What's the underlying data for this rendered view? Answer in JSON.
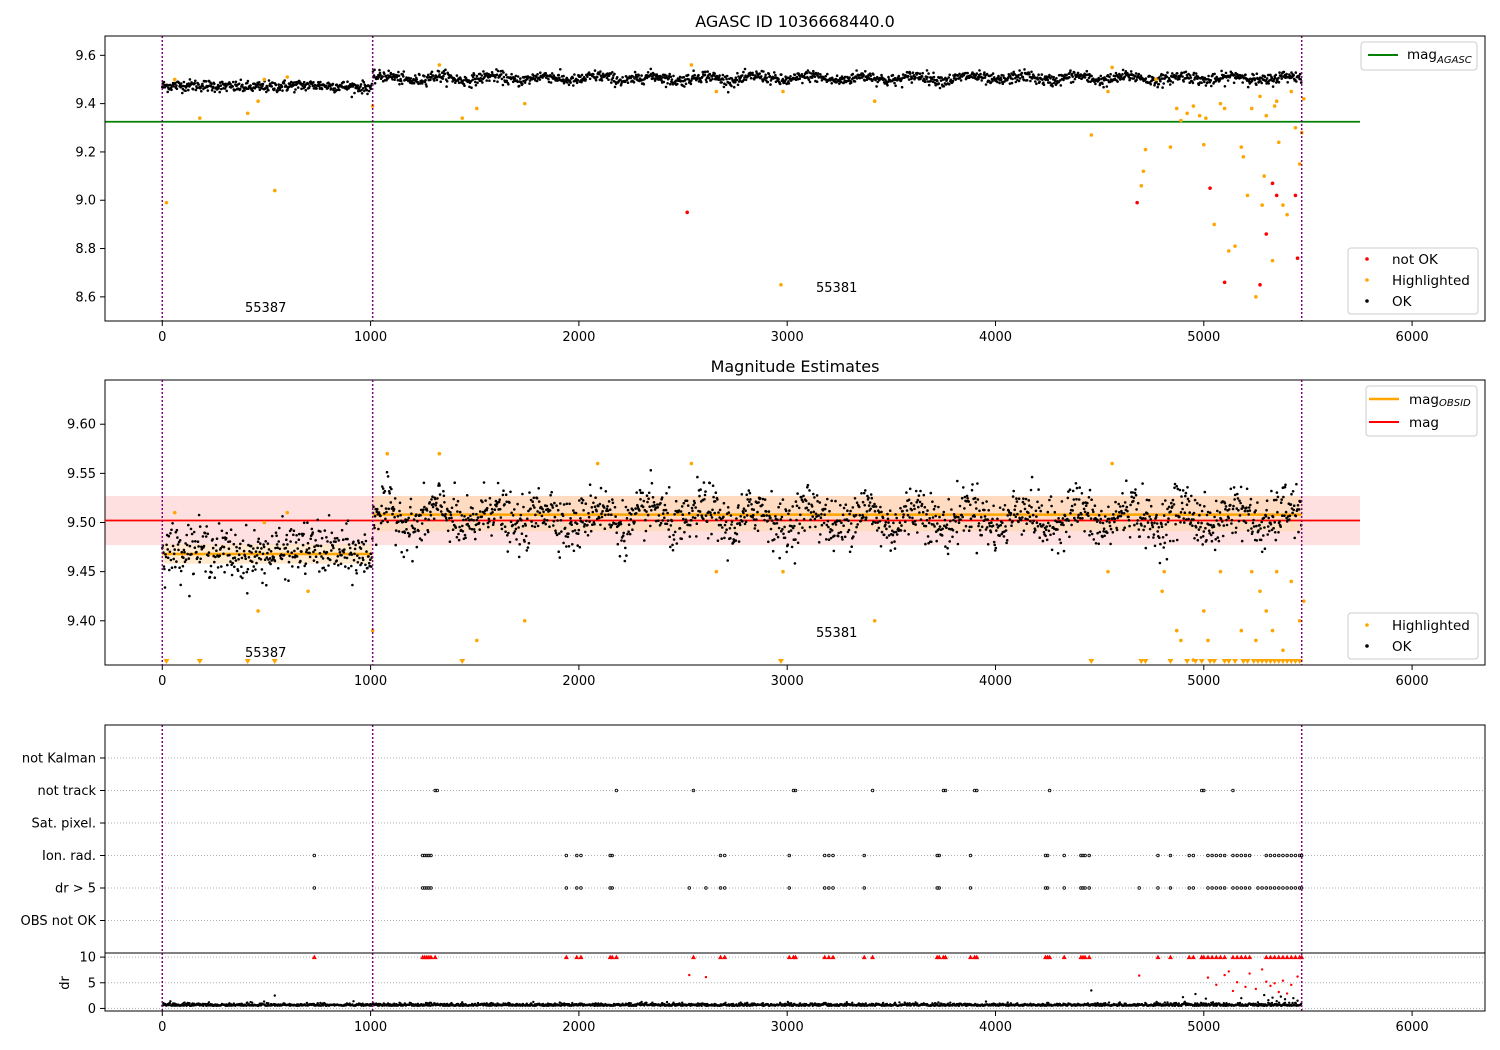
{
  "chart_data": [
    {
      "type": "scatter",
      "title": "AGASC ID 1036668440.0",
      "xlim": [
        -275,
        6350
      ],
      "ylim": [
        8.5,
        9.68
      ],
      "xticks": [
        0,
        1000,
        2000,
        3000,
        4000,
        5000,
        6000
      ],
      "yticks": [
        8.6,
        8.8,
        9.0,
        9.2,
        9.4,
        9.6
      ],
      "ytick_labels": [
        "8.6",
        "8.8",
        "9.0",
        "9.2",
        "9.4",
        "9.6"
      ],
      "obsid_boundaries": [
        0,
        1010,
        5470
      ],
      "mag_agasc": 9.325,
      "mag_agasc_xrange": [
        -275,
        5750
      ],
      "ok_band": {
        "x_start": 0,
        "x_split": 1010,
        "x_end": 5470,
        "level_before": 9.472,
        "level_after": 9.505,
        "scatter": 0.012,
        "wave_amp": 0.02,
        "wave_period": 255
      },
      "highlighted": [
        [
          20,
          8.99
        ],
        [
          60,
          9.5
        ],
        [
          180,
          9.34
        ],
        [
          410,
          9.36
        ],
        [
          460,
          9.41
        ],
        [
          490,
          9.5
        ],
        [
          540,
          9.04
        ],
        [
          600,
          9.51
        ],
        [
          1010,
          9.39
        ],
        [
          1440,
          9.34
        ],
        [
          1510,
          9.38
        ],
        [
          1740,
          9.4
        ],
        [
          1330,
          9.56
        ],
        [
          2540,
          9.56
        ],
        [
          2660,
          9.45
        ],
        [
          2970,
          8.65
        ],
        [
          2980,
          9.45
        ],
        [
          3420,
          9.41
        ],
        [
          4460,
          9.27
        ],
        [
          4540,
          9.45
        ],
        [
          4560,
          9.55
        ],
        [
          4700,
          9.06
        ],
        [
          4710,
          9.12
        ],
        [
          4720,
          9.21
        ],
        [
          4770,
          9.5
        ],
        [
          4840,
          9.22
        ],
        [
          4870,
          9.38
        ],
        [
          4890,
          9.33
        ],
        [
          4920,
          9.36
        ],
        [
          4950,
          9.39
        ],
        [
          4980,
          9.35
        ],
        [
          5000,
          9.23
        ],
        [
          5010,
          9.34
        ],
        [
          5050,
          8.9
        ],
        [
          5080,
          9.4
        ],
        [
          5100,
          9.38
        ],
        [
          5120,
          8.79
        ],
        [
          5150,
          8.81
        ],
        [
          5180,
          9.22
        ],
        [
          5190,
          9.18
        ],
        [
          5210,
          9.02
        ],
        [
          5230,
          9.38
        ],
        [
          5250,
          8.6
        ],
        [
          5270,
          9.43
        ],
        [
          5280,
          8.98
        ],
        [
          5290,
          9.1
        ],
        [
          5300,
          9.35
        ],
        [
          5330,
          8.75
        ],
        [
          5340,
          9.39
        ],
        [
          5350,
          9.41
        ],
        [
          5360,
          9.24
        ],
        [
          5380,
          8.98
        ],
        [
          5400,
          8.94
        ],
        [
          5420,
          9.45
        ],
        [
          5440,
          9.3
        ],
        [
          5460,
          9.15
        ],
        [
          5470,
          9.28
        ],
        [
          5480,
          9.42
        ]
      ],
      "not_ok": [
        [
          2520,
          8.95
        ],
        [
          4680,
          8.99
        ],
        [
          5030,
          9.05
        ],
        [
          5100,
          8.66
        ],
        [
          5270,
          8.65
        ],
        [
          5300,
          8.86
        ],
        [
          5330,
          9.07
        ],
        [
          5350,
          9.02
        ],
        [
          5440,
          9.02
        ],
        [
          5450,
          8.76
        ]
      ],
      "annotations": [
        {
          "text": "55387",
          "x": 400,
          "y": 8.56
        },
        {
          "text": "55381",
          "x": 3130,
          "y": 8.64
        }
      ],
      "legend_upper": [
        "mag_AGASC"
      ],
      "legend_lower": [
        "not OK",
        "Highlighted",
        "OK"
      ],
      "colors": {
        "ok": "#000000",
        "highlighted": "#ffa500",
        "not_ok": "#ff0000",
        "agasc_line": "#008000",
        "obsid_line": "#800080"
      }
    },
    {
      "type": "scatter",
      "title": "Magnitude Estimates",
      "xlim": [
        -275,
        6350
      ],
      "ylim": [
        9.355,
        9.645
      ],
      "xticks": [
        0,
        1000,
        2000,
        3000,
        4000,
        5000,
        6000
      ],
      "yticks": [
        9.4,
        9.45,
        9.5,
        9.55,
        9.6
      ],
      "ytick_labels": [
        "9.40",
        "9.45",
        "9.50",
        "9.55",
        "9.60"
      ],
      "obsid_boundaries": [
        0,
        1010,
        5470
      ],
      "mag": 9.502,
      "mag_band": [
        9.477,
        9.527
      ],
      "mag_band_xrange": [
        -275,
        5750
      ],
      "mag_obsid_segments": [
        {
          "x": [
            0,
            1010
          ],
          "mag": 9.468,
          "band": [
            9.458,
            9.478
          ]
        },
        {
          "x": [
            1010,
            5470
          ],
          "mag": 9.508,
          "band": [
            9.491,
            9.527
          ]
        }
      ],
      "ok_band": {
        "x_start": 0,
        "x_split": 1010,
        "x_end": 5470,
        "level_before": 9.47,
        "level_after": 9.505,
        "scatter": 0.013,
        "wave_amp": 0.022,
        "wave_period": 255
      },
      "highlighted": [
        [
          60,
          9.51
        ],
        [
          460,
          9.41
        ],
        [
          490,
          9.5
        ],
        [
          600,
          9.51
        ],
        [
          700,
          9.43
        ],
        [
          1010,
          9.39
        ],
        [
          1080,
          9.57
        ],
        [
          1330,
          9.57
        ],
        [
          1510,
          9.38
        ],
        [
          1740,
          9.4
        ],
        [
          2090,
          9.56
        ],
        [
          2540,
          9.56
        ],
        [
          2660,
          9.45
        ],
        [
          2980,
          9.45
        ],
        [
          3420,
          9.4
        ],
        [
          4540,
          9.45
        ],
        [
          4560,
          9.56
        ],
        [
          4800,
          9.43
        ],
        [
          4810,
          9.45
        ],
        [
          4870,
          9.39
        ],
        [
          4890,
          9.38
        ],
        [
          4950,
          9.36
        ],
        [
          5000,
          9.41
        ],
        [
          5020,
          9.38
        ],
        [
          5080,
          9.45
        ],
        [
          5180,
          9.39
        ],
        [
          5230,
          9.45
        ],
        [
          5250,
          9.38
        ],
        [
          5270,
          9.43
        ],
        [
          5300,
          9.41
        ],
        [
          5330,
          9.39
        ],
        [
          5350,
          9.45
        ],
        [
          5380,
          9.37
        ],
        [
          5420,
          9.44
        ],
        [
          5460,
          9.4
        ],
        [
          5480,
          9.42
        ]
      ],
      "below_range_x": [
        20,
        180,
        410,
        540,
        1440,
        2970,
        4460,
        4700,
        4720,
        4840,
        4920,
        4960,
        4990,
        5030,
        5050,
        5100,
        5120,
        5150,
        5190,
        5210,
        5240,
        5260,
        5280,
        5300,
        5320,
        5340,
        5360,
        5380,
        5400,
        5420,
        5440,
        5460
      ],
      "annotations": [
        {
          "text": "55387",
          "x": 400,
          "y": 9.366
        },
        {
          "text": "55381",
          "x": 3130,
          "y": 9.386
        }
      ],
      "legend_upper": [
        "mag_OBSID",
        "mag"
      ],
      "legend_lower": [
        "Highlighted",
        "OK"
      ],
      "colors": {
        "ok": "#000000",
        "highlighted": "#ffa500",
        "mag_line": "#ff0000",
        "mag_band": "#ffcccc",
        "obsid_line": "#ffa500",
        "obsid_band": "#ffd9a8",
        "boundary": "#800080"
      }
    },
    {
      "type": "scatter",
      "title": "",
      "xlim": [
        -275,
        6350
      ],
      "xticks": [
        0,
        1000,
        2000,
        3000,
        4000,
        5000,
        6000
      ],
      "flag_rows": [
        "not Kalman",
        "not track",
        "Sat. pixel.",
        "Ion. rad.",
        "dr > 5",
        "OBS not OK"
      ],
      "flag_points": {
        "not track": [
          1310,
          1320,
          2180,
          2550,
          3030,
          3040,
          3410,
          3750,
          3760,
          3900,
          3910,
          4260,
          4990,
          5000,
          5140
        ],
        "Ion. rad.": [
          730,
          1250,
          1260,
          1270,
          1280,
          1290,
          1940,
          1990,
          2010,
          2150,
          2160,
          2680,
          2700,
          3010,
          3180,
          3200,
          3220,
          3370,
          3720,
          3730,
          3880,
          4240,
          4250,
          4330,
          4410,
          4420,
          4430,
          4450,
          4780,
          4840,
          4930,
          4950,
          5020,
          5040,
          5060,
          5080,
          5100,
          5140,
          5160,
          5180,
          5200,
          5220,
          5300,
          5320,
          5340,
          5360,
          5380,
          5400,
          5420,
          5440,
          5460,
          5470
        ],
        "dr > 5": [
          730,
          1250,
          1260,
          1270,
          1280,
          1290,
          1940,
          1990,
          2010,
          2150,
          2160,
          2530,
          2610,
          2680,
          2700,
          3010,
          3180,
          3200,
          3220,
          3370,
          3720,
          3730,
          3880,
          4240,
          4250,
          4330,
          4410,
          4420,
          4430,
          4450,
          4690,
          4780,
          4840,
          4930,
          4950,
          5020,
          5040,
          5060,
          5080,
          5100,
          5140,
          5160,
          5180,
          5200,
          5220,
          5260,
          5280,
          5300,
          5320,
          5340,
          5360,
          5380,
          5400,
          5420,
          5440,
          5460,
          5470
        ]
      },
      "dr": {
        "ylim": [
          -0.5,
          10.8
        ],
        "yticks": [
          0,
          5,
          10
        ],
        "ylabel": "dr",
        "baseline_level": 0.5,
        "capped_x": [
          730,
          1250,
          1260,
          1270,
          1280,
          1290,
          1310,
          1940,
          1990,
          2010,
          2150,
          2160,
          2180,
          2550,
          2680,
          2700,
          3010,
          3030,
          3040,
          3180,
          3200,
          3220,
          3370,
          3410,
          3720,
          3730,
          3750,
          3760,
          3880,
          3900,
          3910,
          4240,
          4250,
          4260,
          4330,
          4410,
          4420,
          4430,
          4450,
          4780,
          4840,
          4930,
          4950,
          4990,
          5000,
          5020,
          5040,
          5060,
          5080,
          5100,
          5140,
          5160,
          5180,
          5200,
          5220,
          5300,
          5320,
          5340,
          5360,
          5380,
          5400,
          5420,
          5440,
          5460,
          5470
        ],
        "red_points": [
          [
            2530,
            6.5
          ],
          [
            2610,
            6.1
          ],
          [
            4690,
            6.4
          ],
          [
            5020,
            6.0
          ],
          [
            5060,
            4.6
          ],
          [
            5100,
            6.5
          ],
          [
            5120,
            7.2
          ],
          [
            5140,
            3.4
          ],
          [
            5160,
            5.1
          ],
          [
            5200,
            4.2
          ],
          [
            5220,
            6.8
          ],
          [
            5250,
            3.8
          ],
          [
            5280,
            7.6
          ],
          [
            5300,
            5.2
          ],
          [
            5320,
            4.4
          ],
          [
            5340,
            4.9
          ],
          [
            5360,
            3.2
          ],
          [
            5380,
            5.4
          ],
          [
            5400,
            2.9
          ],
          [
            5420,
            4.6
          ],
          [
            5450,
            6.2
          ]
        ],
        "black_points": [
          [
            540,
            2.5
          ],
          [
            1440,
            1.2
          ],
          [
            4460,
            3.5
          ],
          [
            4900,
            2.2
          ],
          [
            4960,
            2.8
          ],
          [
            5010,
            1.9
          ],
          [
            5180,
            2.0
          ],
          [
            5260,
            1.2
          ],
          [
            5290,
            2.6
          ],
          [
            5310,
            1.6
          ],
          [
            5330,
            2.1
          ],
          [
            5350,
            1.4
          ],
          [
            5370,
            2.3
          ],
          [
            5390,
            1.8
          ],
          [
            5410,
            1.1
          ],
          [
            5430,
            2.0
          ],
          [
            5450,
            1.5
          ]
        ]
      },
      "obsid_boundaries": [
        0,
        1010,
        5470
      ],
      "colors": {
        "flag": "#000000",
        "dr_ok": "#000000",
        "dr_bad": "#ff0000",
        "boundary": "#800080",
        "grid": "#b0b0b0"
      }
    }
  ],
  "legend_labels": {
    "mag_agasc": "mag",
    "mag_agasc_sub": "AGASC",
    "mag_obsid": "mag",
    "mag_obsid_sub": "OBSID",
    "mag": "mag",
    "not_ok": "not OK",
    "highlighted": "Highlighted",
    "ok": "OK"
  }
}
